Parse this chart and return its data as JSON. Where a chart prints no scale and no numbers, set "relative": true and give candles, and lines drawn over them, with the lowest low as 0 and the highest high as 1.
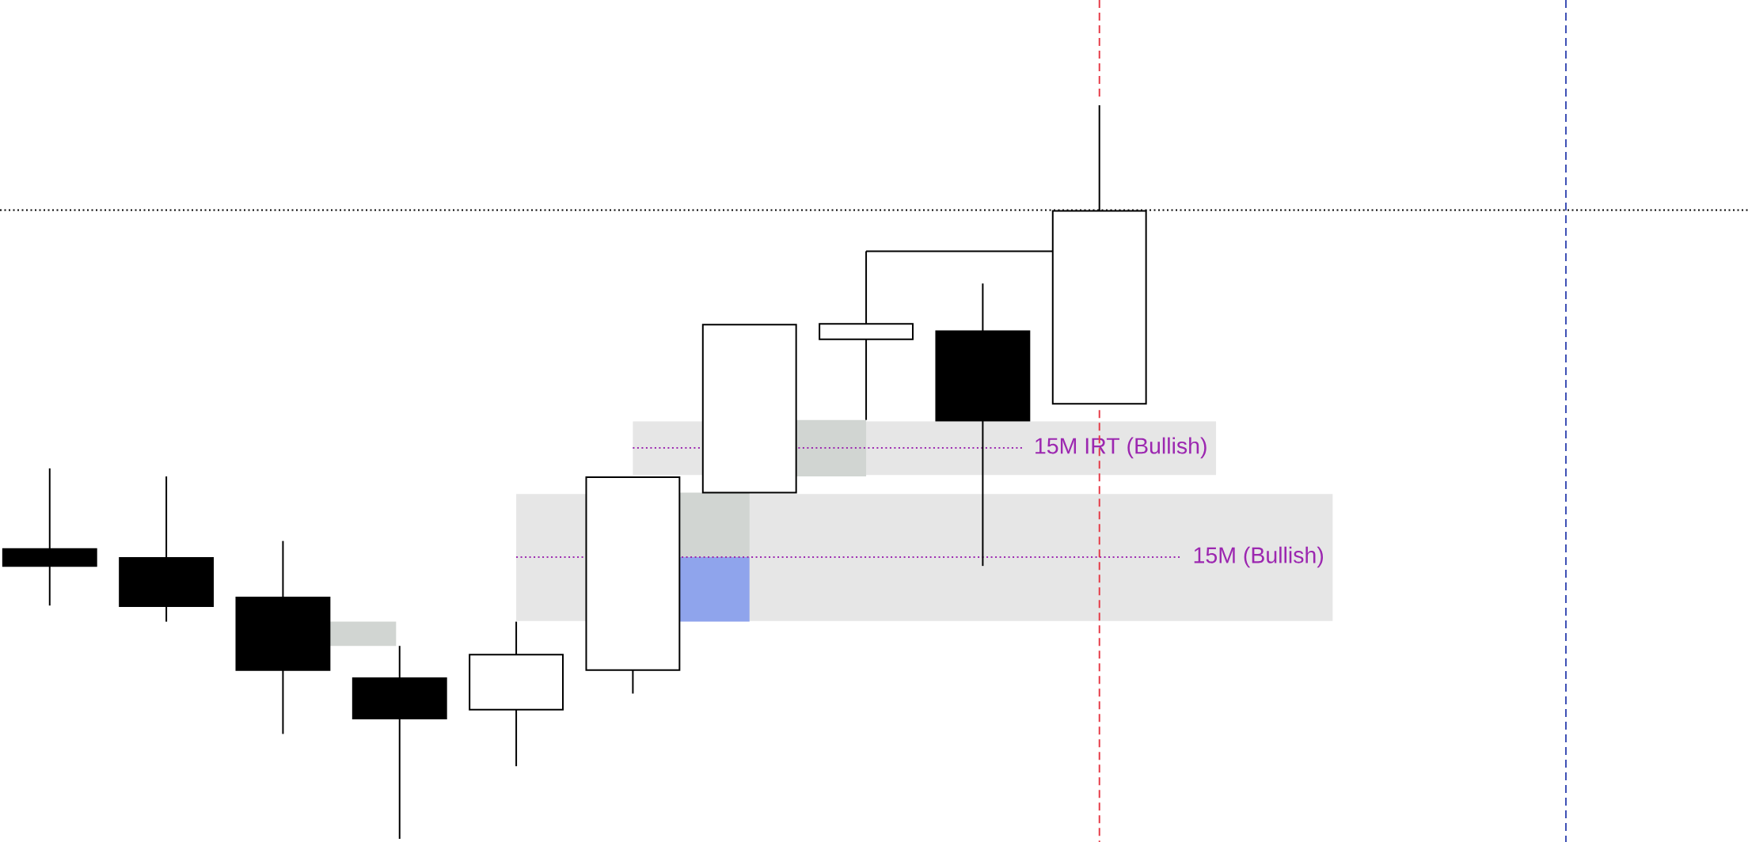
{
  "chart_data": {
    "type": "candlestick",
    "relative": true,
    "categories": [
      null,
      null,
      null,
      null,
      null,
      null,
      null,
      null,
      null,
      null
    ],
    "ohlc": [
      [
        0.395,
        0.505,
        0.318,
        0.372
      ],
      [
        0.383,
        0.494,
        0.296,
        0.317
      ],
      [
        0.329,
        0.406,
        0.143,
        0.23
      ],
      [
        0.219,
        0.263,
        0,
        0.164
      ],
      [
        0.176,
        0.296,
        0.099,
        0.251
      ],
      [
        0.23,
        0.493,
        0.198,
        0.493
      ],
      [
        0.472,
        0.701,
        0.472,
        0.701
      ],
      [
        0.681,
        0.801,
        0.571,
        0.702
      ],
      [
        0.692,
        0.757,
        0.372,
        0.57
      ],
      [
        0.593,
        1,
        0.593,
        0.856
      ]
    ],
    "bands": [
      {
        "axis": "y",
        "from": 0.496,
        "to": 0.569,
        "color": "#e6e6e6"
      },
      {
        "axis": "y",
        "from": 0.297,
        "to": 0.47,
        "color": "#e6e6e6"
      },
      {
        "axis": "y",
        "from": 0.263,
        "to": 0.296,
        "color": "#d1d5d2"
      },
      {
        "axis": "y",
        "from": 0.384,
        "to": 0.472,
        "color": "#d1d5d2"
      },
      {
        "axis": "y",
        "from": 0.296,
        "to": 0.384,
        "color": "#8fa4ec"
      },
      {
        "axis": "y",
        "from": 0.494,
        "to": 0.571,
        "color": "#d1d5d2"
      }
    ],
    "ref_lines": [
      {
        "axis": "y",
        "value": 0.857,
        "color": "#000000",
        "line_style": "dotted"
      },
      {
        "axis": "y",
        "value": 0.801,
        "color": "#000000",
        "line_style": "solid"
      },
      {
        "axis": "y",
        "value": 0.533,
        "label": "15M IRT (Bullish)",
        "color": "#9c27b0",
        "line_style": "dotted"
      },
      {
        "axis": "y",
        "value": 0.384,
        "label": "15M (Bullish)",
        "color": "#9c27b0",
        "line_style": "dotted"
      }
    ]
  }
}
